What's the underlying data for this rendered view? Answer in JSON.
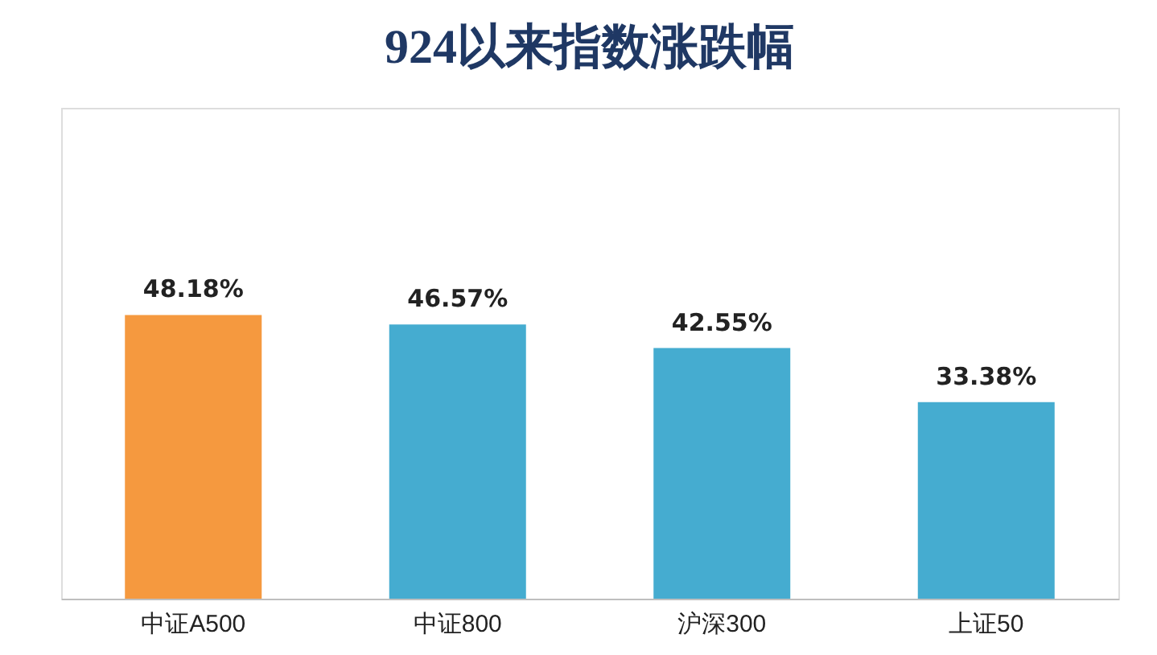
{
  "chart_data": {
    "type": "bar",
    "title": "924以来指数涨跌幅",
    "categories": [
      "中证A500",
      "中证800",
      "沪深300",
      "上证50"
    ],
    "values": [
      48.18,
      46.57,
      42.55,
      33.38
    ],
    "value_labels": [
      "48.18%",
      "46.57%",
      "42.55%",
      "33.38%"
    ],
    "colors": [
      "#f5993f",
      "#45acd0",
      "#45acd0",
      "#45acd0"
    ]
  }
}
